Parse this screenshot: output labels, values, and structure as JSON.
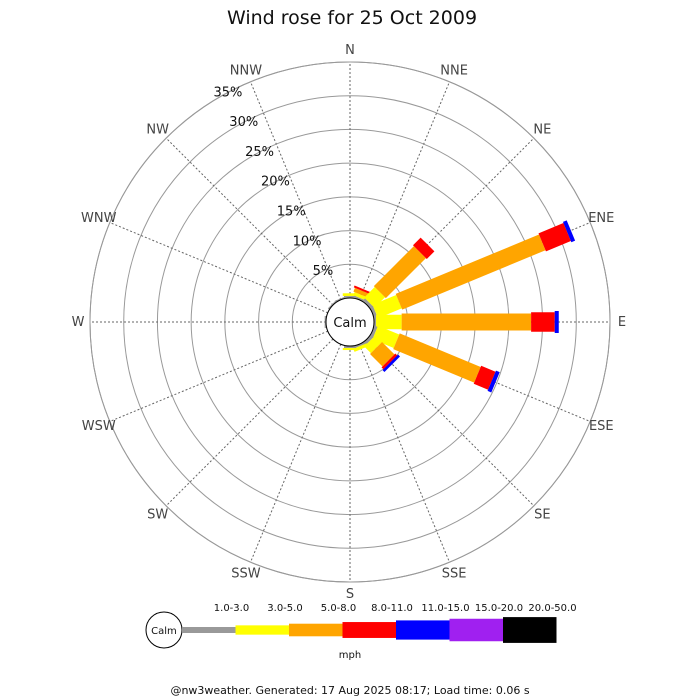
{
  "chart_data": {
    "type": "wind-rose",
    "title": "Wind rose for 25 Oct 2009",
    "calm_label": "Calm",
    "directions": [
      "N",
      "NNE",
      "NE",
      "ENE",
      "E",
      "ESE",
      "SE",
      "SSE",
      "S",
      "SSW",
      "SW",
      "WSW",
      "W",
      "WNW",
      "NW",
      "NNW"
    ],
    "radial_ticks": [
      "5%",
      "10%",
      "15%",
      "20%",
      "25%",
      "30%",
      "35%"
    ],
    "radial_max": 35,
    "speed_bins": [
      {
        "label": "1.0-3.0",
        "color": "#999999"
      },
      {
        "label": "3.0-5.0",
        "color": "#ffff00"
      },
      {
        "label": "5.0-8.0",
        "color": "#ffa500"
      },
      {
        "label": "8.0-11.0",
        "color": "#ff0000"
      },
      {
        "label": "11.0-15.0",
        "color": "#0000ff"
      },
      {
        "label": "15.0-20.0",
        "color": "#a020f0"
      },
      {
        "label": "20.0-50.0",
        "color": "#000000"
      }
    ],
    "units_label": "mph",
    "series_by_direction": {
      "N": [
        0.3,
        0.4,
        0.0,
        0.0,
        0,
        0,
        0
      ],
      "NNE": [
        0.3,
        0.5,
        0.6,
        0.3,
        0,
        0,
        0
      ],
      "NE": [
        0.5,
        2.2,
        8.4,
        1.6,
        0,
        0,
        0
      ],
      "ENE": [
        0.5,
        3.8,
        23.0,
        4.0,
        0.6,
        0,
        0
      ],
      "E": [
        0.3,
        3.8,
        19.2,
        3.5,
        0.6,
        0,
        0
      ],
      "ESE": [
        0.5,
        3.4,
        13.0,
        2.3,
        0.6,
        0,
        0
      ],
      "SE": [
        0.5,
        1.4,
        2.6,
        0.4,
        0.4,
        0,
        0
      ],
      "SSE": [
        0.3,
        0.5,
        0.0,
        0.0,
        0,
        0,
        0
      ],
      "S": [
        0.3,
        0.3,
        0.0,
        0.0,
        0,
        0,
        0
      ],
      "SSW": [
        0,
        0,
        0,
        0,
        0,
        0,
        0
      ],
      "SW": [
        0,
        0,
        0,
        0,
        0,
        0,
        0
      ],
      "WSW": [
        0,
        0,
        0,
        0,
        0,
        0,
        0
      ],
      "W": [
        0.2,
        0,
        0,
        0,
        0,
        0,
        0
      ],
      "WNW": [
        0,
        0,
        0,
        0,
        0,
        0,
        0
      ],
      "NW": [
        0.2,
        0,
        0,
        0,
        0,
        0,
        0
      ],
      "NNW": [
        0.2,
        0,
        0,
        0,
        0,
        0,
        0
      ]
    }
  },
  "footer": "@nw3weather. Generated: 17 Aug 2025 08:17; Load time: 0.06 s"
}
